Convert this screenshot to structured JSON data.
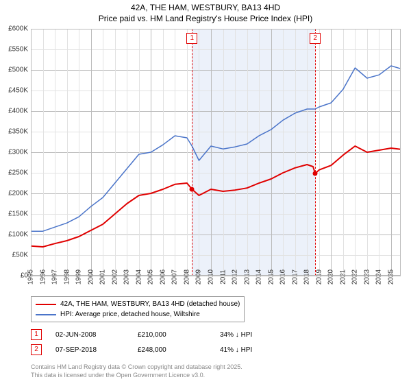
{
  "title_line1": "42A, THE HAM, WESTBURY, BA13 4HD",
  "title_line2": "Price paid vs. HM Land Registry's House Price Index (HPI)",
  "chart": {
    "type": "line",
    "x_range": [
      1995,
      2025.8
    ],
    "y_range": [
      0,
      600000
    ],
    "x_ticks": [
      1995,
      1996,
      1997,
      1998,
      1999,
      2000,
      2001,
      2002,
      2003,
      2004,
      2005,
      2006,
      2007,
      2008,
      2009,
      2010,
      2011,
      2012,
      2013,
      2014,
      2015,
      2016,
      2017,
      2018,
      2019,
      2020,
      2021,
      2022,
      2023,
      2024,
      2025
    ],
    "y_ticks": [
      0,
      50000,
      100000,
      150000,
      200000,
      250000,
      300000,
      350000,
      400000,
      450000,
      500000,
      550000,
      600000
    ],
    "y_tick_labels": [
      "£0",
      "£50K",
      "£100K",
      "£150K",
      "£200K",
      "£250K",
      "£300K",
      "£350K",
      "£400K",
      "£450K",
      "£500K",
      "£550K",
      "£600K"
    ],
    "grid_color_major": "#bbbbbb",
    "grid_color_minor": "#e2e2e2",
    "background_color": "#ffffff",
    "shade_color": "rgba(100,140,210,0.12)",
    "shade_from_x": 2008.42,
    "shade_to_x": 2018.68,
    "series": {
      "property": {
        "label": "42A, THE HAM, WESTBURY, BA13 4HD (detached house)",
        "color": "#e00000",
        "line_width": 2,
        "data": [
          [
            1995,
            72000
          ],
          [
            1996,
            70000
          ],
          [
            1997,
            78000
          ],
          [
            1998,
            85000
          ],
          [
            1999,
            95000
          ],
          [
            2000,
            110000
          ],
          [
            2001,
            125000
          ],
          [
            2002,
            150000
          ],
          [
            2003,
            175000
          ],
          [
            2004,
            195000
          ],
          [
            2005,
            200000
          ],
          [
            2006,
            210000
          ],
          [
            2007,
            222000
          ],
          [
            2008,
            225000
          ],
          [
            2008.42,
            210000
          ],
          [
            2009,
            195000
          ],
          [
            2010,
            210000
          ],
          [
            2011,
            205000
          ],
          [
            2012,
            208000
          ],
          [
            2013,
            213000
          ],
          [
            2014,
            225000
          ],
          [
            2015,
            235000
          ],
          [
            2016,
            250000
          ],
          [
            2017,
            262000
          ],
          [
            2018,
            270000
          ],
          [
            2018.5,
            265000
          ],
          [
            2018.68,
            248000
          ],
          [
            2019,
            257000
          ],
          [
            2020,
            268000
          ],
          [
            2021,
            293000
          ],
          [
            2022,
            315000
          ],
          [
            2023,
            300000
          ],
          [
            2024,
            305000
          ],
          [
            2025,
            310000
          ],
          [
            2025.8,
            307000
          ]
        ]
      },
      "hpi": {
        "label": "HPI: Average price, detached house, Wiltshire",
        "color": "#4a74c9",
        "line_width": 1.5,
        "data": [
          [
            1995,
            108000
          ],
          [
            1996,
            108000
          ],
          [
            1997,
            118000
          ],
          [
            1998,
            128000
          ],
          [
            1999,
            143000
          ],
          [
            2000,
            168000
          ],
          [
            2001,
            190000
          ],
          [
            2002,
            225000
          ],
          [
            2003,
            260000
          ],
          [
            2004,
            295000
          ],
          [
            2005,
            300000
          ],
          [
            2006,
            318000
          ],
          [
            2007,
            340000
          ],
          [
            2008,
            335000
          ],
          [
            2008.42,
            315000
          ],
          [
            2009,
            280000
          ],
          [
            2010,
            315000
          ],
          [
            2011,
            308000
          ],
          [
            2012,
            313000
          ],
          [
            2013,
            320000
          ],
          [
            2014,
            340000
          ],
          [
            2015,
            355000
          ],
          [
            2016,
            378000
          ],
          [
            2017,
            395000
          ],
          [
            2018,
            405000
          ],
          [
            2018.68,
            405000
          ],
          [
            2019,
            410000
          ],
          [
            2020,
            420000
          ],
          [
            2021,
            453000
          ],
          [
            2022,
            505000
          ],
          [
            2023,
            480000
          ],
          [
            2024,
            488000
          ],
          [
            2025,
            510000
          ],
          [
            2025.8,
            503000
          ]
        ]
      }
    },
    "markers": [
      {
        "n": "1",
        "x": 2008.42,
        "y": 210000,
        "color": "#e00000"
      },
      {
        "n": "2",
        "x": 2018.68,
        "y": 248000,
        "color": "#e00000"
      }
    ]
  },
  "legend": {
    "items": [
      {
        "color": "#e00000",
        "label": "42A, THE HAM, WESTBURY, BA13 4HD (detached house)"
      },
      {
        "color": "#4a74c9",
        "label": "HPI: Average price, detached house, Wiltshire"
      }
    ]
  },
  "sales": [
    {
      "n": "1",
      "date": "02-JUN-2008",
      "price": "£210,000",
      "diff": "34% ↓ HPI",
      "color": "#e00000"
    },
    {
      "n": "2",
      "date": "07-SEP-2018",
      "price": "£248,000",
      "diff": "41% ↓ HPI",
      "color": "#e00000"
    }
  ],
  "footer_line1": "Contains HM Land Registry data © Crown copyright and database right 2025.",
  "footer_line2": "This data is licensed under the Open Government Licence v3.0."
}
